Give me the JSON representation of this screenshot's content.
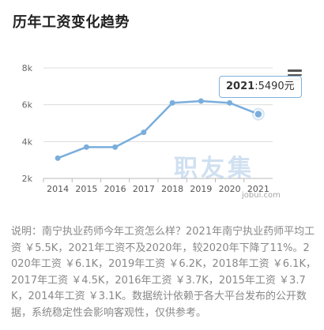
{
  "title": "历年工资变化趋势",
  "chart_data": {
    "type": "line",
    "categories": [
      "2014",
      "2015",
      "2016",
      "2017",
      "2018",
      "2019",
      "2020",
      "2021"
    ],
    "values": [
      3.1,
      3.7,
      3.7,
      4.5,
      6.1,
      6.2,
      6.1,
      5.49
    ],
    "ylim": [
      2,
      8
    ],
    "yticks": [
      2,
      4,
      6,
      8
    ],
    "ytick_labels": [
      "2k",
      "4k",
      "6k",
      "8k"
    ],
    "grid": true,
    "line_color": "#7aaedc"
  },
  "tooltip": {
    "year": "2021",
    "value_text": ":5490元"
  },
  "watermark": {
    "text": "职友集",
    "url": "jobui.com"
  },
  "description": "说明：南宁执业药师今年工资怎么样？2021年南宁执业药师平均工资 ￥5.5K，2021年工资不及2020年，较2020年下降了11%。2020年工资 ￥6.1K，2019年工资 ￥6.2K，2018年工资 ￥6.1K，2017年工资 ￥4.5K，2016年工资 ￥3.7K，2015年工资 ￥3.7K，2014年工资 ￥3.1K。数据统计依赖于各大平台发布的公开数据，系统稳定性会影响客观性，仅供参考。"
}
